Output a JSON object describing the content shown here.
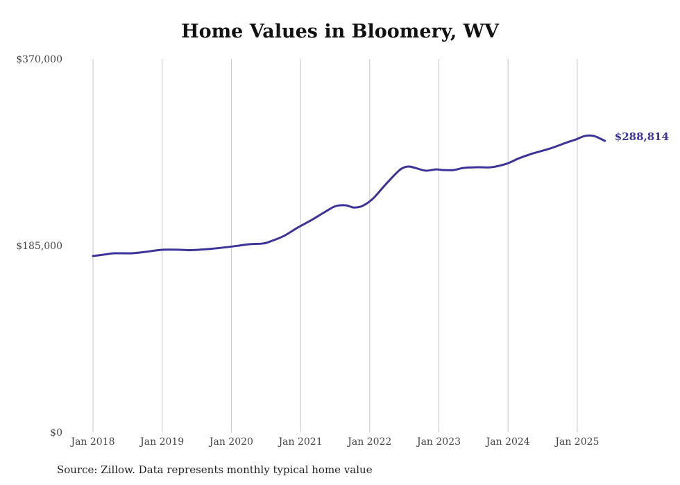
{
  "chart_data": {
    "type": "line",
    "title": "Home Values in Bloomery, WV",
    "xlabel": "",
    "ylabel": "",
    "ylim": [
      0,
      370000
    ],
    "xlim": [
      2018,
      2025.4
    ],
    "grid": "vertical",
    "y_ticks": [
      {
        "value": 0,
        "label": "$0"
      },
      {
        "value": 185000,
        "label": "$185,000"
      },
      {
        "value": 370000,
        "label": "$370,000"
      }
    ],
    "x_ticks": [
      {
        "value": 2018,
        "label": "Jan 2018"
      },
      {
        "value": 2019,
        "label": "Jan 2019"
      },
      {
        "value": 2020,
        "label": "Jan 2020"
      },
      {
        "value": 2021,
        "label": "Jan 2021"
      },
      {
        "value": 2022,
        "label": "Jan 2022"
      },
      {
        "value": 2023,
        "label": "Jan 2023"
      },
      {
        "value": 2024,
        "label": "Jan 2024"
      },
      {
        "value": 2025,
        "label": "Jan 2025"
      }
    ],
    "series": [
      {
        "name": "Typical home value",
        "color": "#3b3399",
        "end_label": "$288,814",
        "x": [
          2018.0,
          2018.16,
          2018.31,
          2018.56,
          2018.76,
          2019.0,
          2019.26,
          2019.41,
          2019.66,
          2019.86,
          2020.11,
          2020.26,
          2020.46,
          2020.56,
          2020.76,
          2020.96,
          2021.16,
          2021.36,
          2021.51,
          2021.66,
          2021.76,
          2021.86,
          2021.96,
          2022.06,
          2022.21,
          2022.36,
          2022.46,
          2022.56,
          2022.66,
          2022.81,
          2022.96,
          2023.06,
          2023.21,
          2023.36,
          2023.56,
          2023.76,
          2023.98,
          2024.16,
          2024.36,
          2024.61,
          2024.86,
          2024.98,
          2025.11,
          2025.24,
          2025.4
        ],
        "values": [
          174700,
          176100,
          177400,
          177400,
          178800,
          180900,
          180900,
          180500,
          181600,
          182900,
          185000,
          186400,
          187100,
          189100,
          194600,
          202900,
          210400,
          218700,
          224200,
          224900,
          222800,
          223500,
          226900,
          232400,
          244100,
          255100,
          261300,
          263400,
          262000,
          259300,
          260600,
          259900,
          259900,
          262000,
          262700,
          262700,
          266200,
          271600,
          276400,
          281300,
          287500,
          290200,
          293700,
          293700,
          288814
        ]
      }
    ]
  },
  "source": "Source: Zillow. Data represents monthly typical home value"
}
